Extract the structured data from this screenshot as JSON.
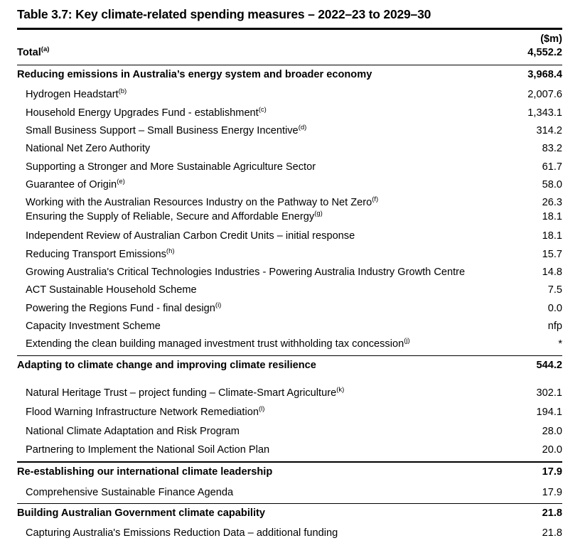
{
  "title": "Table 3.7: Key climate-related spending measures – 2022–23 to 2029–30",
  "unit_header": "($m)",
  "total": {
    "label": "Total",
    "superscript": "(a)",
    "value": "4,552.2"
  },
  "sections": [
    {
      "label": "Reducing emissions in Australia’s energy system and broader economy",
      "value": "3,968.4",
      "rows": [
        {
          "label": "Hydrogen Headstart",
          "superscript": "(b)",
          "value": "2,007.6"
        },
        {
          "label": "Household Energy Upgrades Fund - establishment",
          "superscript": "(c)",
          "value": "1,343.1"
        },
        {
          "label": "Small Business Support – Small Business Energy Incentive",
          "superscript": "(d)",
          "value": "314.2"
        },
        {
          "label": "National Net Zero Authority",
          "superscript": "",
          "value": "83.2"
        },
        {
          "label": "Supporting a Stronger and More Sustainable Agriculture Sector",
          "superscript": "",
          "value": "61.7"
        },
        {
          "label": "Guarantee of Origin",
          "superscript": "(e)",
          "value": "58.0"
        },
        {
          "label": "Working with the Australian Resources Industry on the Pathway to Net Zero",
          "superscript": "(f)",
          "value": "26.3"
        },
        {
          "label": "Ensuring the Supply of Reliable, Secure and Affordable Energy",
          "superscript": "(g)",
          "value": "18.1"
        },
        {
          "label": "Independent Review of Australian Carbon Credit Units – initial response",
          "superscript": "",
          "value": "18.1"
        },
        {
          "label": "Reducing Transport Emissions",
          "superscript": "(h)",
          "value": "15.7"
        },
        {
          "label": "Growing Australia's Critical Technologies Industries - Powering Australia Industry Growth Centre",
          "superscript": "",
          "value": "14.8"
        },
        {
          "label": "ACT Sustainable Household Scheme",
          "superscript": "",
          "value": "7.5"
        },
        {
          "label": "Powering the Regions Fund - final design",
          "superscript": "(i)",
          "value": "0.0"
        },
        {
          "label": "Capacity Investment Scheme",
          "superscript": "",
          "value": "nfp"
        },
        {
          "label": "Extending the clean building managed investment trust withholding tax concession",
          "superscript": "(j)",
          "value": "*"
        }
      ]
    },
    {
      "label": "Adapting to climate change and improving climate resilience",
      "value": "544.2",
      "rows": [
        {
          "label": "Natural Heritage Trust – project funding – Climate-Smart Agriculture",
          "superscript": "(k)",
          "value": "302.1"
        },
        {
          "label": "Flood Warning Infrastructure Network Remediation",
          "superscript": "(l)",
          "value": "194.1"
        },
        {
          "label": "National Climate Adaptation and Risk Program",
          "superscript": "",
          "value": "28.0"
        },
        {
          "label": "Partnering to Implement the National Soil Action Plan",
          "superscript": "",
          "value": "20.0"
        }
      ]
    },
    {
      "label": "Re-establishing our international climate leadership",
      "value": "17.9",
      "rows": [
        {
          "label": "Comprehensive Sustainable Finance Agenda",
          "superscript": "",
          "value": "17.9"
        }
      ]
    },
    {
      "label": "Building Australian Government climate capability",
      "value": "21.8",
      "rows": [
        {
          "label": "Capturing Australia's Emissions Reduction Data – additional funding",
          "superscript": "",
          "value": "21.8"
        }
      ]
    }
  ]
}
